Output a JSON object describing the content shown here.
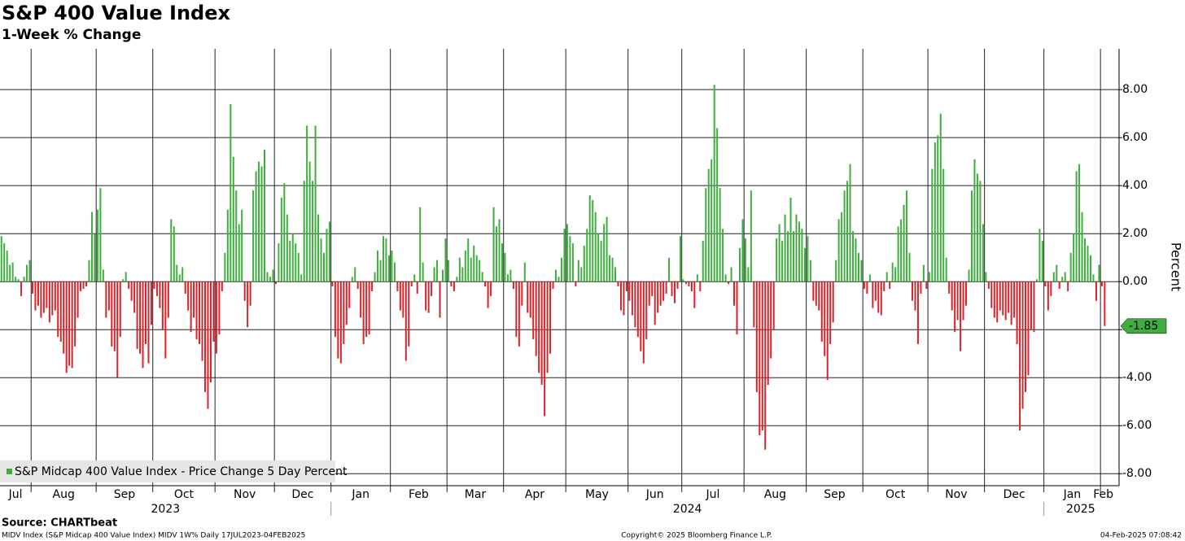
{
  "chart_data": {
    "type": "bar",
    "title": "S&P 400 Value Index",
    "subtitle": "1-Week % Change",
    "ylabel": "Percent",
    "legend": "S&P Midcap 400 Value Index - Price Change 5 Day Percent",
    "positive_color": "#3fae3f",
    "negative_color": "#d8232a",
    "grid": true,
    "ylim": [
      -8.5,
      9.7
    ],
    "yticks": [
      {
        "value": -8,
        "label": "-8.00"
      },
      {
        "value": -6,
        "label": "-6.00"
      },
      {
        "value": -4,
        "label": "-4.00"
      },
      {
        "value": -2,
        "label": "-2.00"
      },
      {
        "value": 0,
        "label": "0.00"
      },
      {
        "value": 2,
        "label": "2.00"
      },
      {
        "value": 4,
        "label": "4.00"
      },
      {
        "value": 6,
        "label": "6.00"
      },
      {
        "value": 8,
        "label": "8.00"
      }
    ],
    "categories": [
      "Jul",
      "Aug",
      "Sep",
      "Oct",
      "Nov",
      "Dec",
      "Jan",
      "Feb",
      "Mar",
      "Apr",
      "May",
      "Jun",
      "Jul",
      "Aug",
      "Sep",
      "Oct",
      "Nov",
      "Dec",
      "Jan",
      "Feb"
    ],
    "years": [
      "2023",
      "2024",
      "2025"
    ],
    "values": [
      [
        1.9,
        1.6,
        1.3,
        0.7,
        0.8,
        0.2,
        0.1,
        -0.6,
        0.2,
        0.7,
        0.9
      ],
      [
        -0.5,
        -1.2,
        -1.0,
        -1.5,
        -1.3,
        -1.1,
        -1.7,
        -1.4,
        -1.2,
        -2.3,
        -2.5,
        -3.0,
        -3.8,
        -3.5,
        -3.6,
        -2.7,
        -1.5,
        -0.4,
        -0.3,
        -0.2,
        0.9,
        2.9,
        2.0
      ],
      [
        3.0,
        3.9,
        0.5,
        -1.5,
        -1.2,
        -2.7,
        -2.9,
        -4.0,
        -2.3,
        0.1,
        0.4,
        -0.3,
        -0.8,
        -1.3,
        -2.8,
        -3.0,
        -3.6,
        -2.6,
        -3.4,
        -1.8
      ],
      [
        -0.3,
        -0.6,
        -1.1,
        -2.0,
        -3.2,
        -1.5,
        2.6,
        2.3,
        0.7,
        0.3,
        0.6,
        -0.5,
        -1.2,
        -2.1,
        -1.5,
        -2.4,
        -2.6,
        -3.3,
        -4.6,
        -5.3,
        -4.2,
        -2.5
      ],
      [
        -3.0,
        -2.2,
        -0.4,
        1.2,
        3.0,
        7.4,
        5.2,
        3.8,
        2.4,
        3.0,
        -0.8,
        -1.9,
        -1.0,
        3.8,
        4.6,
        5.0,
        4.8,
        5.5,
        0.4,
        0.2,
        0.5
      ],
      [
        -0.1,
        1.6,
        3.5,
        4.1,
        2.8,
        1.7,
        2.0,
        1.6,
        1.2,
        0.3,
        4.2,
        6.5,
        5.0,
        4.2,
        6.5,
        2.8,
        1.8,
        1.2,
        2.2,
        2.5
      ],
      [
        -0.2,
        -2.3,
        -3.2,
        -3.4,
        -2.6,
        -1.8,
        -1.1,
        0.2,
        0.6,
        -0.3,
        -1.5,
        -2.6,
        -2.3,
        -2.2,
        -0.4,
        0.4,
        1.3,
        0.9,
        1.9,
        1.8,
        1.1
      ],
      [
        1.3,
        0.8,
        -0.4,
        -1.2,
        -1.5,
        -3.3,
        -2.7,
        -0.2,
        0.3,
        -0.5,
        3.1,
        0.8,
        -1.2,
        -1.3,
        -0.6,
        0.6,
        0.9,
        -1.5,
        0.5,
        1.8
      ],
      [
        0.9,
        -0.2,
        -0.4,
        0.2,
        1.0,
        0.6,
        1.3,
        1.8,
        1.0,
        1.5,
        1.1,
        0.9,
        0.4,
        -0.2,
        -1.1,
        -0.6,
        3.1,
        2.3,
        2.6,
        1.6
      ],
      [
        1.2,
        0.3,
        0.5,
        -0.3,
        -2.3,
        -2.7,
        -1.0,
        0.8,
        -1.3,
        -1.5,
        -2.4,
        -3.1,
        -3.8,
        -4.3,
        -5.6,
        -3.8,
        -3.0,
        -0.3,
        0.5,
        0.2,
        1.0,
        2.2
      ],
      [
        2.4,
        1.9,
        1.6,
        -0.2,
        0.9,
        0.6,
        1.5,
        2.2,
        3.6,
        3.4,
        2.9,
        2.0,
        1.7,
        2.4,
        2.7,
        1.1,
        1.0,
        0.6,
        -0.2,
        -1.2,
        -1.4,
        -0.4
      ],
      [
        -0.8,
        -1.4,
        -1.9,
        -2.3,
        -2.9,
        -3.4,
        -2.4,
        -1.0,
        -0.6,
        -1.8,
        -1.3,
        -1.0,
        -0.8,
        -0.5,
        1.0,
        -0.6,
        -0.9,
        -0.3,
        1.9
      ],
      [
        0.1,
        -0.1,
        -0.2,
        -0.4,
        -1.1,
        0.3,
        -0.4,
        1.7,
        3.9,
        4.7,
        5.1,
        8.2,
        6.4,
        3.9,
        2.2,
        0.3,
        -0.1,
        0.6,
        -1.0,
        -2.2,
        1.4,
        2.6
      ],
      [
        1.8,
        0.6,
        3.8,
        -1.9,
        -4.6,
        -6.4,
        -6.2,
        -7.0,
        -4.3,
        -3.2,
        -2.0,
        1.8,
        2.4,
        1.7,
        2.8,
        2.1,
        3.5,
        2.1,
        2.8,
        2.5,
        2.2,
        1.4
      ],
      [
        1.9,
        0.9,
        -0.8,
        -1.0,
        -1.2,
        -2.5,
        -3.1,
        -4.1,
        -2.6,
        -1.7,
        0.9,
        2.6,
        2.9,
        3.8,
        4.2,
        4.9,
        2.1,
        1.8,
        1.2,
        0.9
      ],
      [
        -0.3,
        -0.5,
        0.3,
        -1.1,
        -0.8,
        -1.3,
        -1.4,
        -0.4,
        0.4,
        -0.3,
        0.8,
        0.6,
        2.3,
        2.6,
        3.2,
        3.8,
        1.2,
        -0.8,
        -1.2,
        -2.6,
        -0.5,
        0.7,
        -0.3
      ],
      [
        0.4,
        4.7,
        5.8,
        6.1,
        7.0,
        4.7,
        1.0,
        -0.5,
        -1.2,
        -2.1,
        -1.6,
        -2.9,
        -1.6,
        -1.0,
        0.5,
        3.8,
        5.1,
        4.5,
        4.2,
        2.4
      ],
      [
        0.4,
        -0.3,
        -1.1,
        -1.5,
        -1.7,
        -1.2,
        -1.4,
        -1.6,
        -1.3,
        -1.8,
        -1.5,
        -2.6,
        -6.2,
        -5.3,
        -4.6,
        -3.9,
        -2.0,
        -2.1,
        0.1,
        2.2,
        1.7
      ],
      [
        -0.2,
        -1.2,
        -0.6,
        0.4,
        0.7,
        -0.3,
        0.2,
        0.4,
        -0.4,
        1.2,
        2.0,
        4.6,
        4.9,
        2.9,
        1.8,
        1.5,
        1.1,
        0.3,
        -0.8,
        0.7
      ],
      [
        -0.2,
        -1.85
      ]
    ]
  },
  "source": "Source: CHARTbeat",
  "footer_left": "MIDV Index (S&P Midcap 400 Value Index) MIDV 1W% Daily 17JUL2023-04FEB2025",
  "footer_center": "Copyright© 2025 Bloomberg Finance L.P.",
  "footer_right": "04-Feb-2025 07:08:42"
}
